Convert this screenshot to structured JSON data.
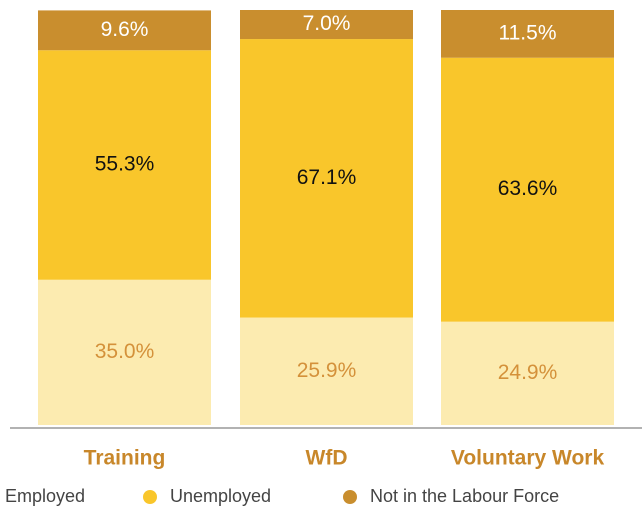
{
  "chart_data": {
    "type": "stacked_bar",
    "categories": [
      "Training",
      "WfD",
      "Voluntary Work"
    ],
    "ylim": [
      0,
      100
    ],
    "series": [
      {
        "name": "Employed",
        "color": "#FCEBB0",
        "label_color": "#D4913A",
        "values": [
          35.0,
          25.9,
          24.9
        ],
        "value_labels": [
          "35.0%",
          "25.9%",
          "24.9%"
        ]
      },
      {
        "name": "Unemployed",
        "color": "#F9C62B",
        "label_color": "#111111",
        "values": [
          55.3,
          67.1,
          63.6
        ],
        "value_labels": [
          "55.3%",
          "67.1%",
          "63.6%"
        ]
      },
      {
        "name": "Not in the Labour Force",
        "color": "#C98E2E",
        "label_color": "#ffffff",
        "values": [
          9.6,
          7.0,
          11.5
        ],
        "value_labels": [
          "9.6%",
          "7.0%",
          "11.5%"
        ]
      }
    ]
  }
}
